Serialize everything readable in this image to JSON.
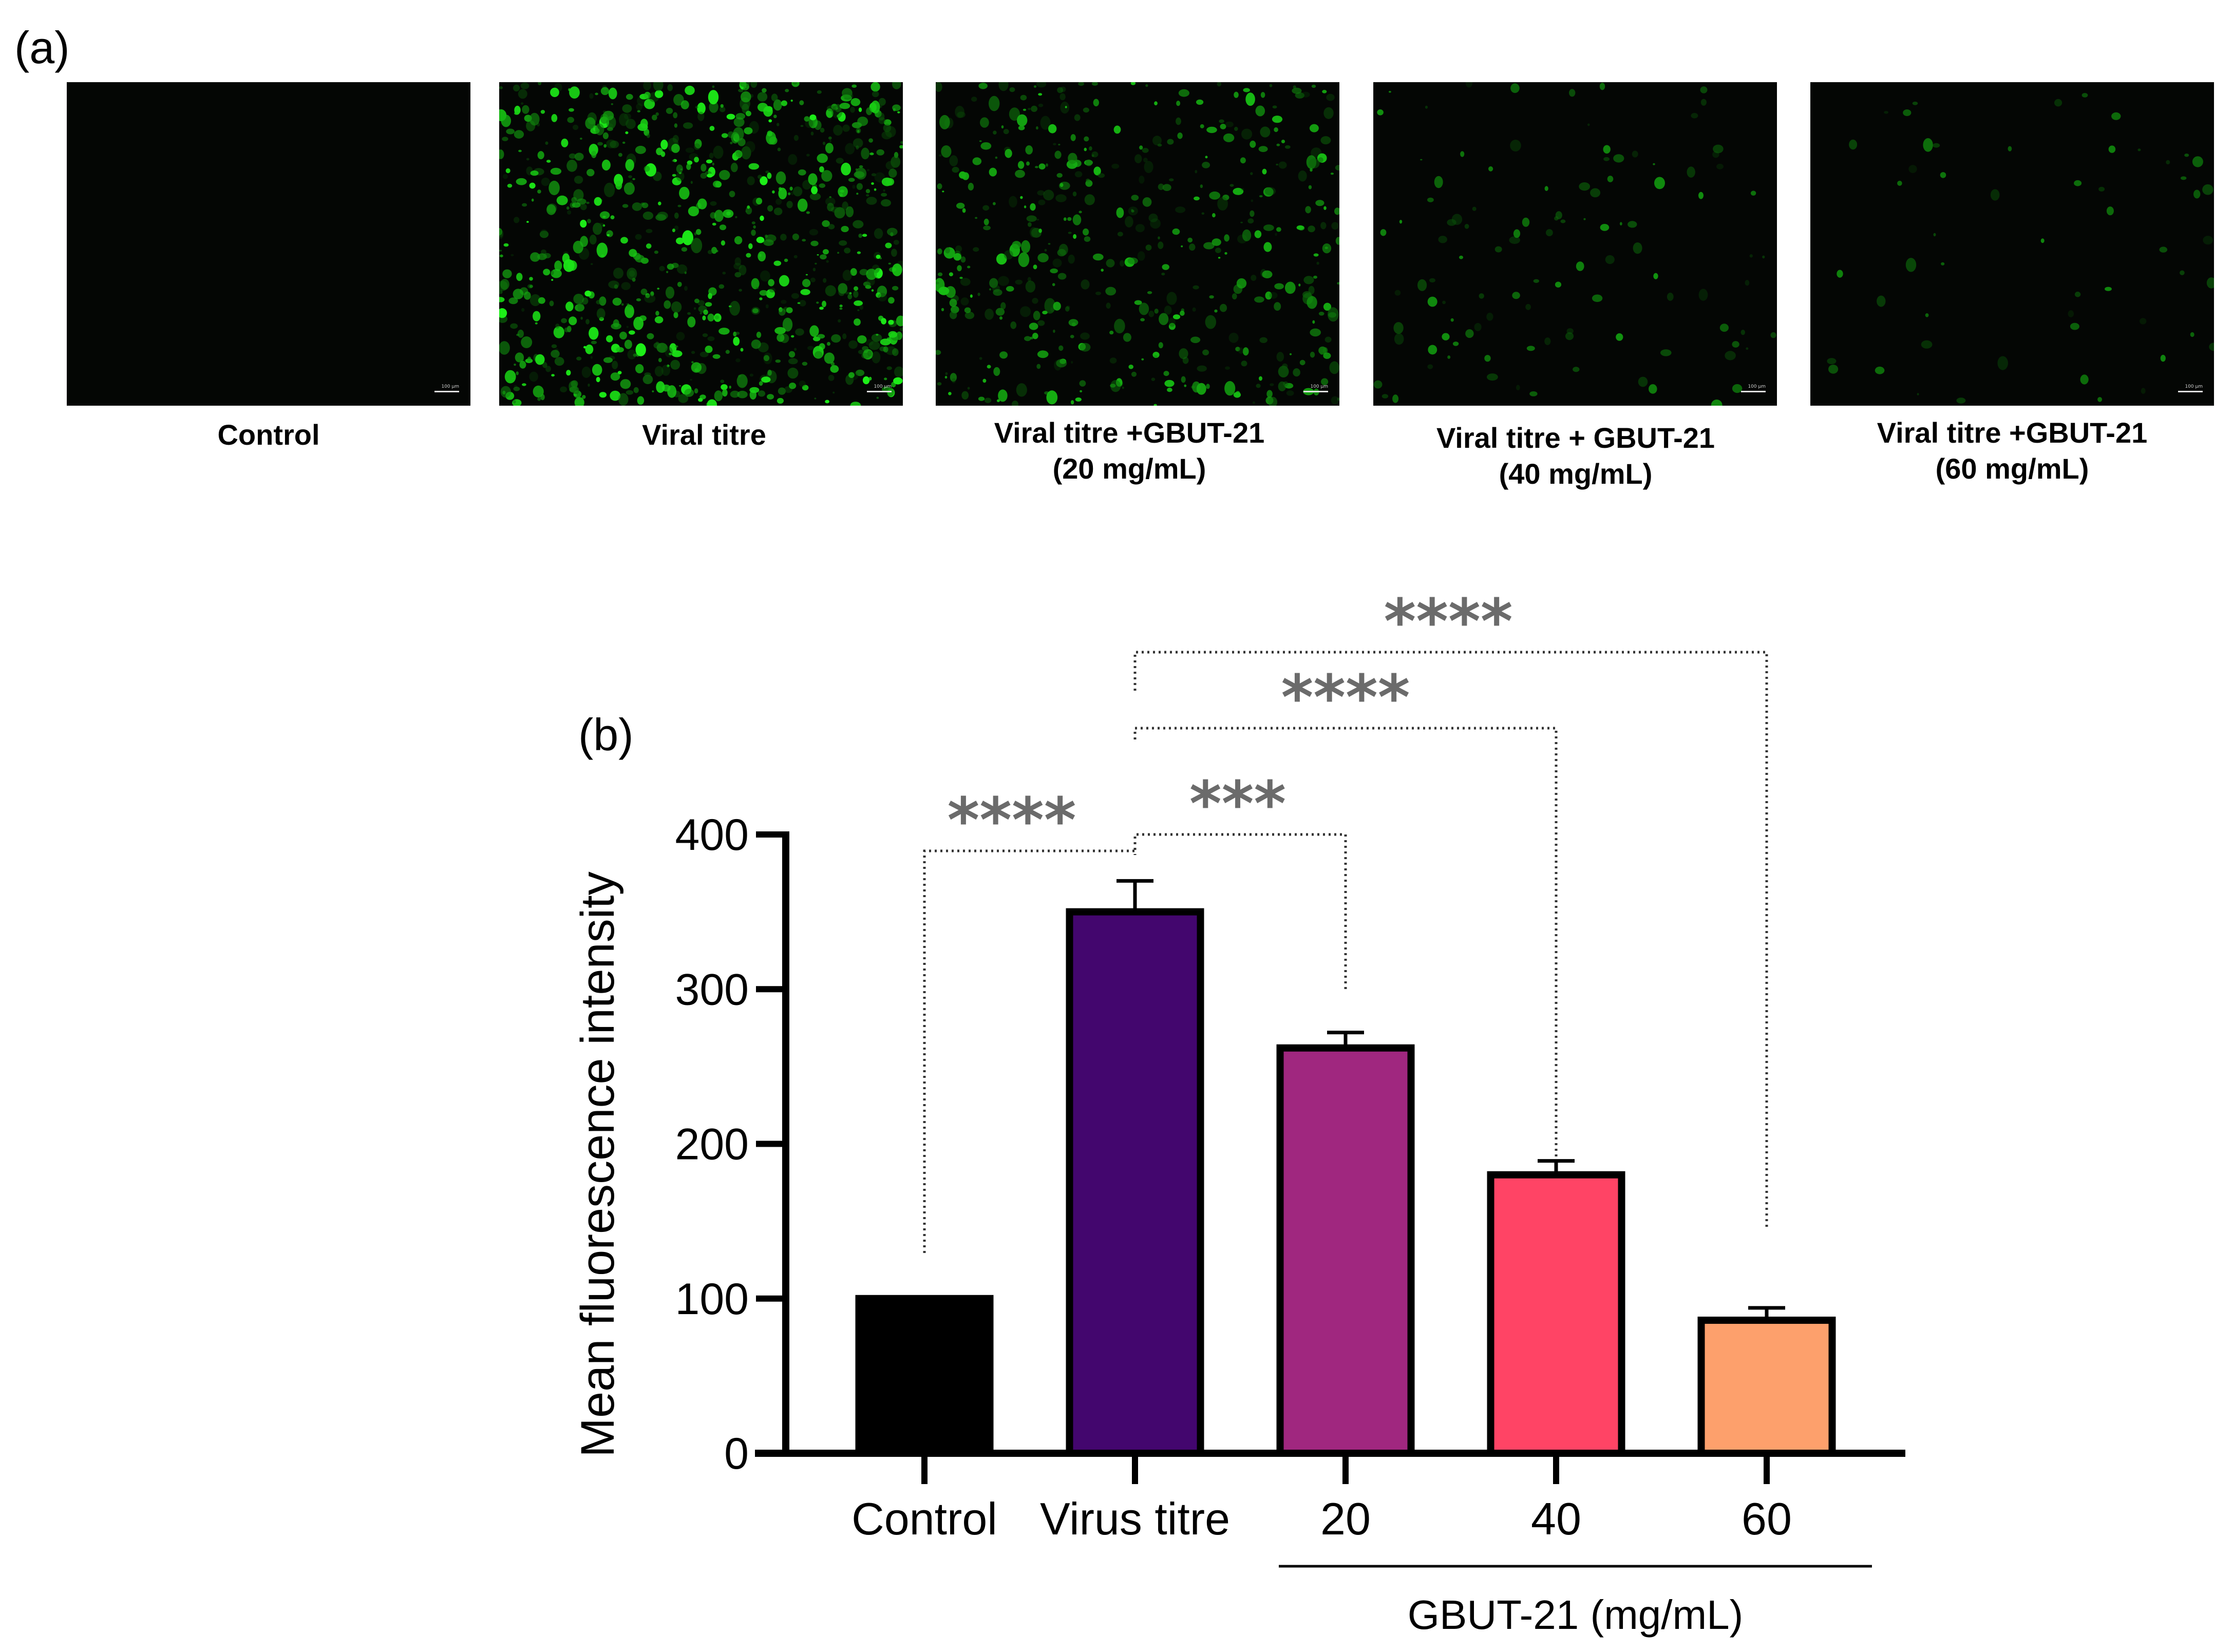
{
  "panel_a": {
    "label": "(a)",
    "images": [
      {
        "caption_line1": "Control",
        "caption_line2": "",
        "scale_text": "100 µm",
        "green_density": 0.0
      },
      {
        "caption_line1": "Viral titre",
        "caption_line2": "",
        "scale_text": "100 µm",
        "green_density": 1.0
      },
      {
        "caption_line1": "Viral titre +GBUT-21",
        "caption_line2": "(20 mg/mL)",
        "scale_text": "100 µm",
        "green_density": 0.55
      },
      {
        "caption_line1": "Viral titre + GBUT-21",
        "caption_line2": "(40 mg/mL)",
        "scale_text": "100 µm",
        "green_density": 0.12
      },
      {
        "caption_line1": "Viral titre +GBUT-21",
        "caption_line2": "(60 mg/mL)",
        "scale_text": "100 µm",
        "green_density": 0.06
      }
    ]
  },
  "panel_b": {
    "label": "(b)"
  },
  "chart_data": {
    "type": "bar",
    "categories": [
      "Control",
      "Virus titre",
      "20",
      "40",
      "60"
    ],
    "values": [
      100,
      350,
      262,
      180,
      86
    ],
    "errors": [
      1,
      20,
      10,
      9,
      8
    ],
    "bar_colors": [
      "#000000",
      "#43066e",
      "#a0277f",
      "#ff4465",
      "#fda06c"
    ],
    "ylabel": "Mean fluorescence intensity",
    "ylim": [
      0,
      400
    ],
    "yticks": [
      0,
      100,
      200,
      300,
      400
    ],
    "group_label": "GBUT-21 (mg/mL)",
    "group_categories": [
      "20",
      "40",
      "60"
    ],
    "significance": [
      {
        "from": "Control",
        "to": "Virus titre",
        "label": "****"
      },
      {
        "from": "Virus titre",
        "to": "20",
        "label": "***"
      },
      {
        "from": "Virus titre",
        "to": "40",
        "label": "****"
      },
      {
        "from": "Virus titre",
        "to": "60",
        "label": "****"
      }
    ],
    "significance_color": "#6b6b6b"
  }
}
